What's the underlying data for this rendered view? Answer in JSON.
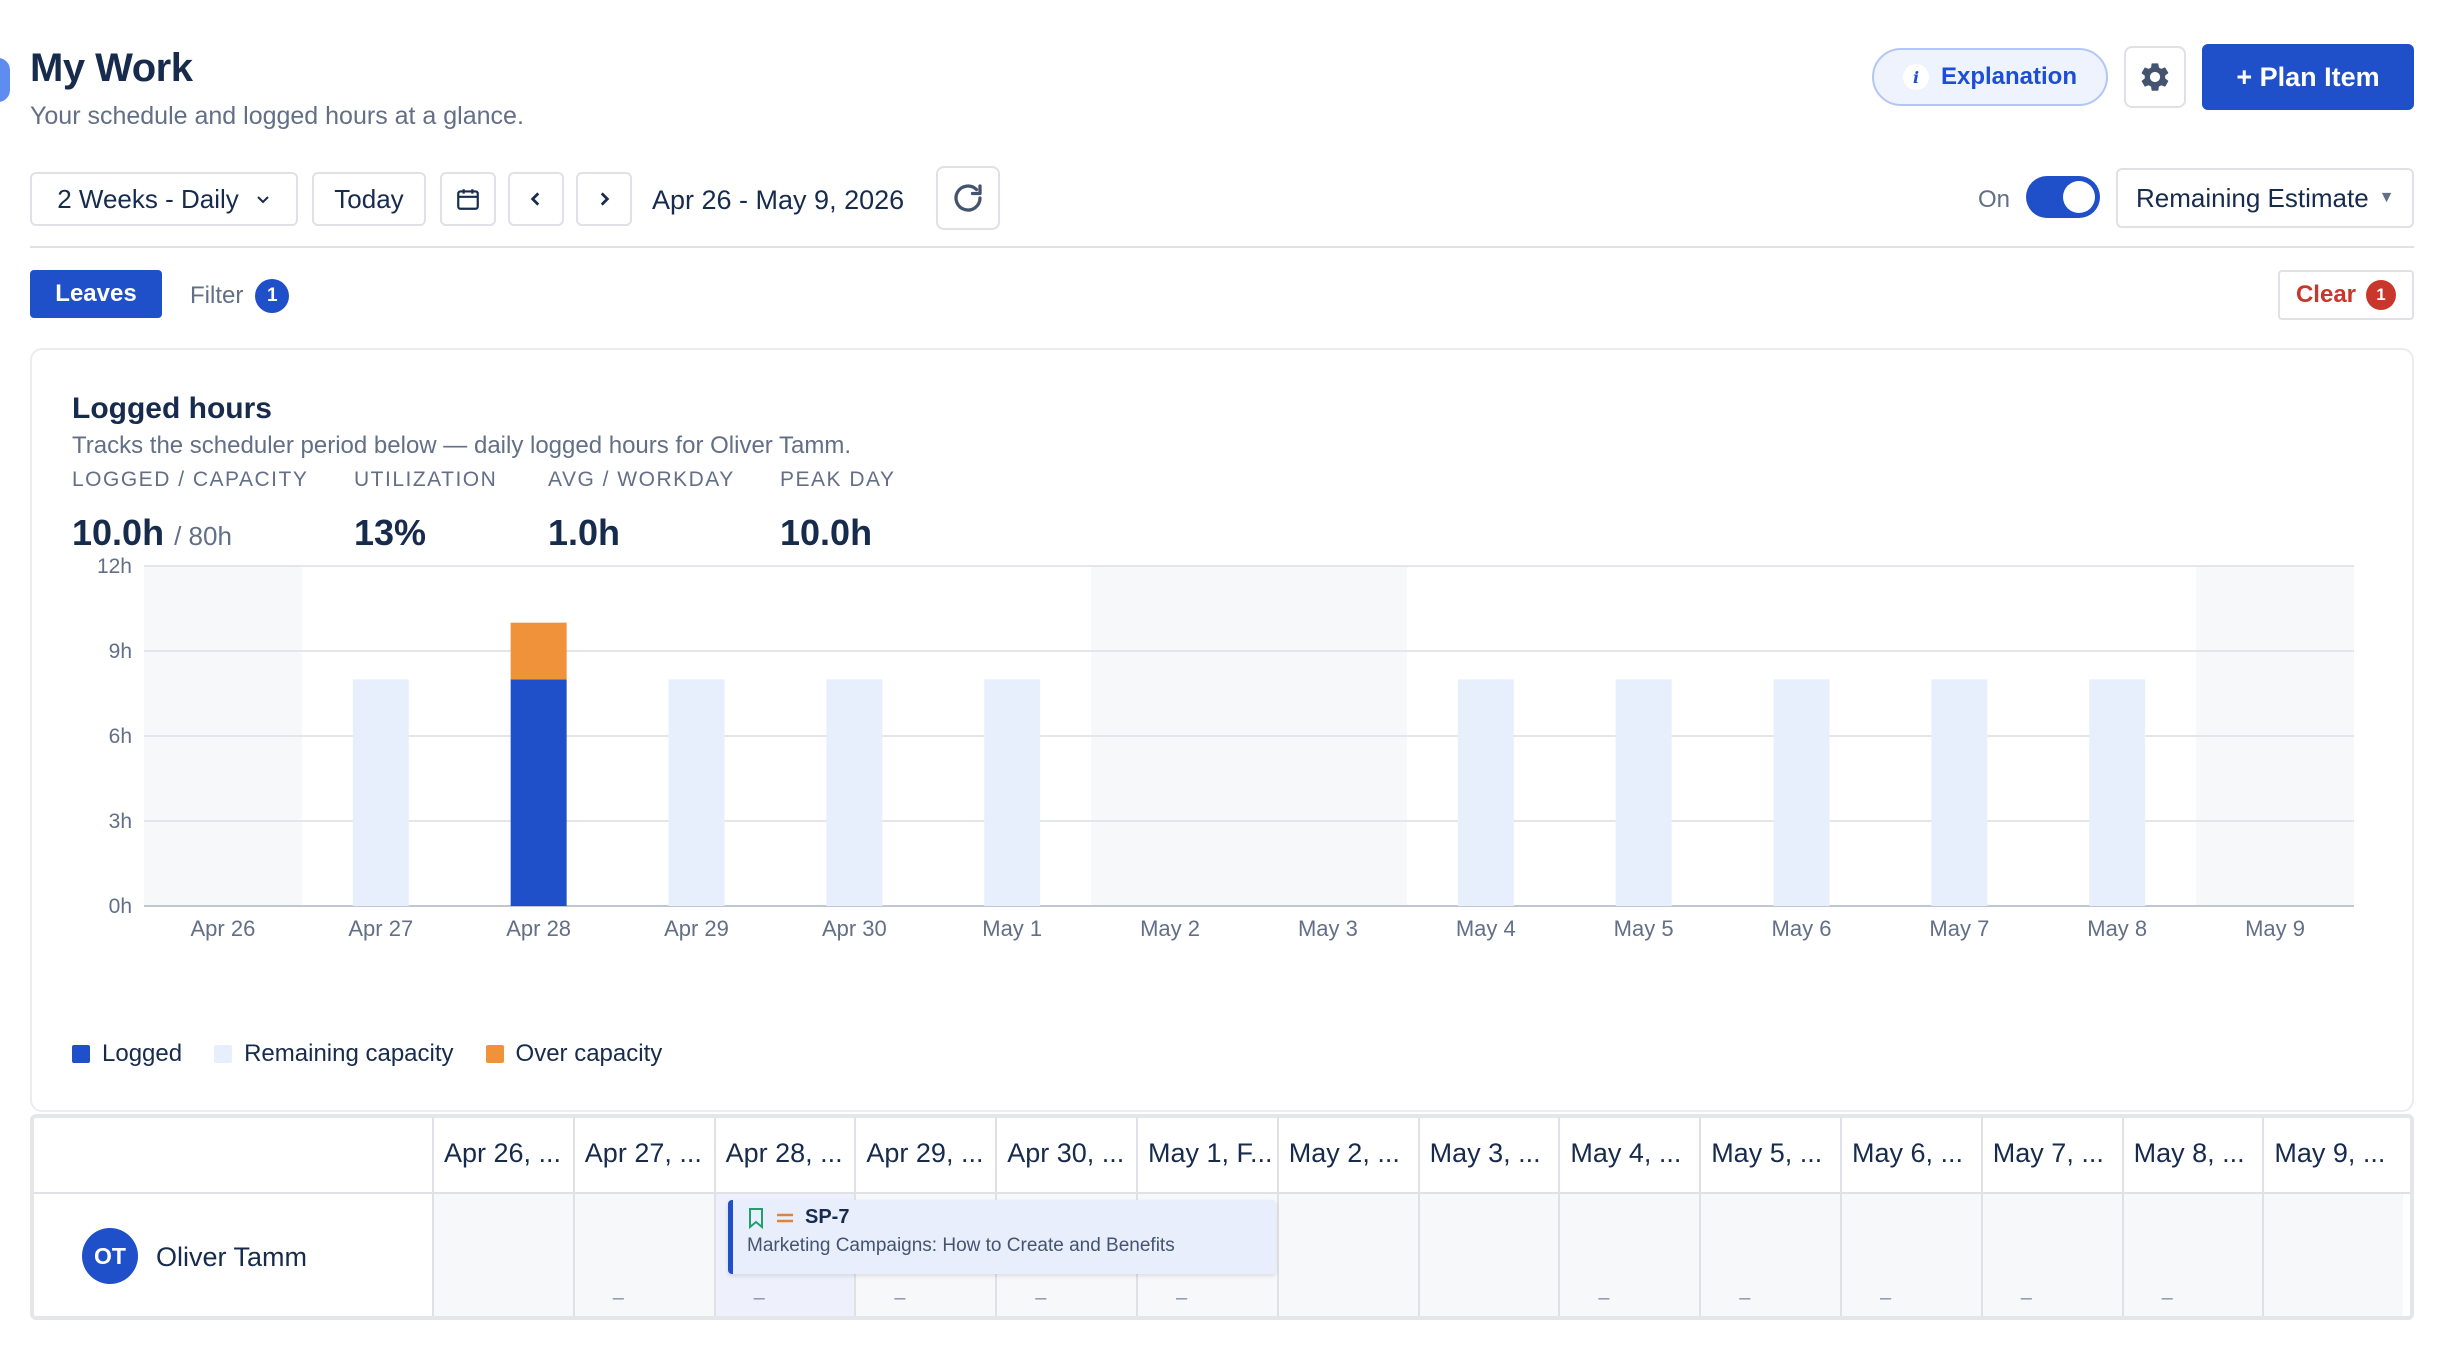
{
  "header": {
    "title": "My Work",
    "subtitle": "Your schedule and logged hours at a glance.",
    "explanation_label": "Explanation",
    "plan_item_label": "+ Plan Item"
  },
  "toolbar": {
    "range_label": "2 Weeks - Daily",
    "today_label": "Today",
    "date_range": "Apr 26 - May 9, 2026",
    "toggle_label": "On",
    "toggle_on": true,
    "estimate_label": "Remaining Estimate"
  },
  "filters": {
    "leaves_label": "Leaves",
    "filter_label": "Filter",
    "filter_count": "1",
    "clear_label": "Clear",
    "clear_count": "1"
  },
  "chart_panel": {
    "title": "Logged hours",
    "subtitle": "Tracks the scheduler period below — daily logged hours for Oliver Tamm.",
    "stats": [
      {
        "label": "LOGGED / CAPACITY",
        "value": "10.0h",
        "suffix": "/ 80h"
      },
      {
        "label": "UTILIZATION",
        "value": "13%"
      },
      {
        "label": "AVG / WORKDAY",
        "value": "1.0h"
      },
      {
        "label": "PEAK DAY",
        "value": "10.0h"
      }
    ],
    "legend": [
      {
        "label": "Logged",
        "color": "#1f4fc9"
      },
      {
        "label": "Remaining capacity",
        "color": "#e8effc"
      },
      {
        "label": "Over capacity",
        "color": "#f0923a"
      }
    ]
  },
  "chart_data": {
    "type": "bar",
    "stacked": true,
    "categories": [
      "Apr 26",
      "Apr 27",
      "Apr 28",
      "Apr 29",
      "Apr 30",
      "May 1",
      "May 2",
      "May 3",
      "May 4",
      "May 5",
      "May 6",
      "May 7",
      "May 8",
      "May 9"
    ],
    "weekend": [
      true,
      false,
      false,
      false,
      false,
      false,
      true,
      true,
      false,
      false,
      false,
      false,
      false,
      true
    ],
    "series": [
      {
        "name": "Logged",
        "values": [
          0,
          0,
          8,
          0,
          0,
          0,
          0,
          0,
          0,
          0,
          0,
          0,
          0,
          0
        ],
        "color": "#1f4fc9"
      },
      {
        "name": "Remaining capacity",
        "values": [
          0,
          8,
          0,
          8,
          8,
          8,
          0,
          0,
          8,
          8,
          8,
          8,
          8,
          0
        ],
        "color": "#e8effc"
      },
      {
        "name": "Over capacity",
        "values": [
          0,
          0,
          2,
          0,
          0,
          0,
          0,
          0,
          0,
          0,
          0,
          0,
          0,
          0
        ],
        "color": "#f0923a"
      }
    ],
    "yticks": [
      "0h",
      "3h",
      "6h",
      "9h",
      "12h"
    ],
    "ylim": [
      0,
      12
    ],
    "grid": true,
    "legend_position": "bottom-left"
  },
  "scheduler": {
    "columns": [
      "Apr 26, ...",
      "Apr 27, ...",
      "Apr 28, ...",
      "Apr 29, ...",
      "Apr 30, ...",
      "May 1, F...",
      "May 2, ...",
      "May 3, ...",
      "May 4, ...",
      "May 5, ...",
      "May 6, ...",
      "May 7, ...",
      "May 8, ...",
      "May 9, ..."
    ],
    "cell_marks": [
      "",
      "–",
      "–",
      "–",
      "–",
      "–",
      "",
      "",
      "–",
      "–",
      "–",
      "–",
      "–",
      ""
    ],
    "user": {
      "initials": "OT",
      "name": "Oliver Tamm"
    },
    "task": {
      "key": "SP-7",
      "title": "Marketing Campaigns: How to Create and Benefits"
    }
  }
}
